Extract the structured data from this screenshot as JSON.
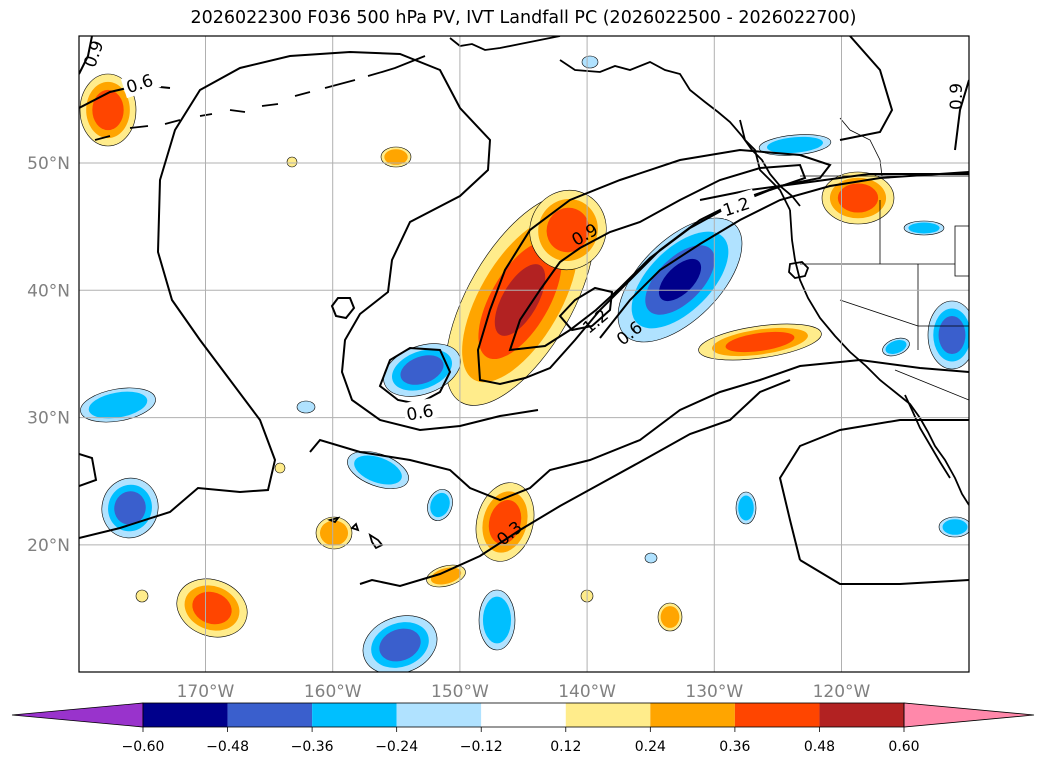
{
  "title": "2026022300 F036 500 hPa PV, IVT Landfall PC (2026022500 - 2026022700)",
  "map": {
    "lon_ticks": [
      {
        "lon": -170,
        "label": "170°W"
      },
      {
        "lon": -160,
        "label": "160°W"
      },
      {
        "lon": -150,
        "label": "150°W"
      },
      {
        "lon": -140,
        "label": "140°W"
      },
      {
        "lon": -130,
        "label": "130°W"
      },
      {
        "lon": -120,
        "label": "120°W"
      }
    ],
    "lat_ticks": [
      {
        "lat": 50,
        "label": "50°N"
      },
      {
        "lat": 40,
        "label": "40°N"
      },
      {
        "lat": 30,
        "label": "30°N"
      },
      {
        "lat": 20,
        "label": "20°N"
      }
    ],
    "grid": true
  },
  "contour_labels": [
    {
      "id": "label-0-6-nw",
      "text": "0.6"
    },
    {
      "id": "label-0-9-nwcorner",
      "text": "0.9"
    },
    {
      "id": "label-0-9-ne",
      "text": "0.9"
    },
    {
      "id": "label-1-2-ne",
      "text": "1.2"
    },
    {
      "id": "label-0-9-center",
      "text": "0.9"
    },
    {
      "id": "label-1-2-center",
      "text": "1.2"
    },
    {
      "id": "label-0-6-center",
      "text": "0.6"
    },
    {
      "id": "label-0-6-cutoff",
      "text": "0.6"
    },
    {
      "id": "label-0-3-south",
      "text": "0.3"
    }
  ],
  "colorbar": {
    "colors": [
      "#9933cc",
      "#00008b",
      "#3a5fcd",
      "#00bfff",
      "#b0e2ff",
      "#ffffff",
      "#ffec8b",
      "#ffa500",
      "#ff4500",
      "#b22222",
      "#ff88aa"
    ],
    "ticks": [
      "−0.60",
      "−0.48",
      "−0.36",
      "−0.24",
      "−0.12",
      "0.12",
      "0.24",
      "0.36",
      "0.48",
      "0.60"
    ]
  },
  "shading_levels": {
    "neg": [
      "#b0e2ff",
      "#00bfff",
      "#3a5fcd",
      "#00008b"
    ],
    "pos": [
      "#ffec8b",
      "#ffa500",
      "#ff4500",
      "#b22222"
    ]
  }
}
